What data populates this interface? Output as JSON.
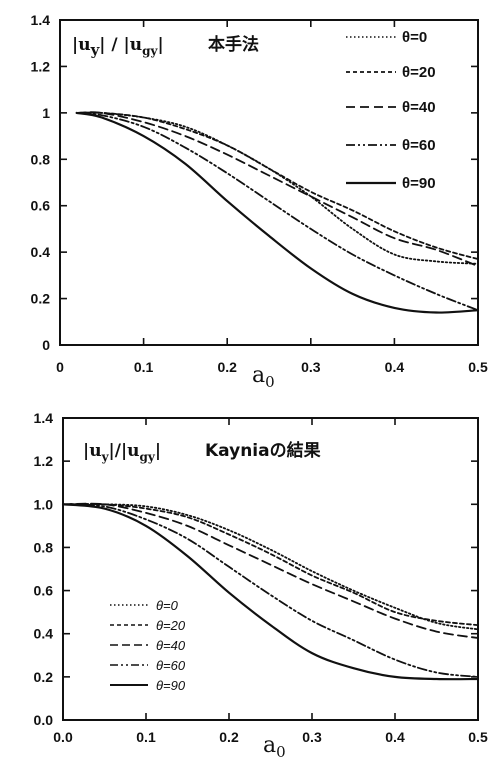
{
  "chart_data": [
    {
      "type": "line",
      "title": "本手法",
      "ylabel": "|uy| / |ugy|",
      "ylabel_parts": {
        "num": "u",
        "num_sub": "y",
        "den": "u",
        "den_sub": "gy"
      },
      "xlabel": "a0",
      "xlabel_parts": {
        "main": "a",
        "sub": "0"
      },
      "xlim": [
        0,
        0.5
      ],
      "ylim": [
        0,
        1.4
      ],
      "xticks": [
        "0",
        "0.1",
        "0.2",
        "0.3",
        "0.4",
        "0.5"
      ],
      "yticks": [
        "0",
        "0.2",
        "0.4",
        "0.6",
        "0.8",
        "1",
        "1.2",
        "1.4"
      ],
      "grid": false,
      "legend_position": "top-right",
      "series": [
        {
          "name": "θ=0",
          "style": "dotted",
          "x": [
            0.02,
            0.05,
            0.1,
            0.15,
            0.2,
            0.25,
            0.3,
            0.35,
            0.4,
            0.45,
            0.5
          ],
          "y": [
            1.0,
            1.0,
            0.98,
            0.94,
            0.86,
            0.76,
            0.64,
            0.5,
            0.39,
            0.36,
            0.35
          ]
        },
        {
          "name": "θ=20",
          "style": "short-dash",
          "x": [
            0.02,
            0.05,
            0.1,
            0.15,
            0.2,
            0.25,
            0.3,
            0.35,
            0.4,
            0.45,
            0.5
          ],
          "y": [
            1.0,
            1.0,
            0.98,
            0.93,
            0.86,
            0.76,
            0.66,
            0.58,
            0.49,
            0.42,
            0.37
          ]
        },
        {
          "name": "θ=40",
          "style": "dash",
          "x": [
            0.02,
            0.05,
            0.1,
            0.15,
            0.2,
            0.25,
            0.3,
            0.35,
            0.4,
            0.45,
            0.5
          ],
          "y": [
            1.0,
            1.0,
            0.96,
            0.9,
            0.82,
            0.73,
            0.64,
            0.55,
            0.46,
            0.41,
            0.34
          ]
        },
        {
          "name": "θ=60",
          "style": "dash-dot-dot",
          "x": [
            0.02,
            0.05,
            0.1,
            0.15,
            0.2,
            0.25,
            0.3,
            0.35,
            0.4,
            0.45,
            0.5
          ],
          "y": [
            1.0,
            0.99,
            0.94,
            0.85,
            0.74,
            0.62,
            0.5,
            0.39,
            0.3,
            0.22,
            0.15
          ]
        },
        {
          "name": "θ=90",
          "style": "solid",
          "x": [
            0.02,
            0.05,
            0.1,
            0.15,
            0.2,
            0.25,
            0.3,
            0.35,
            0.4,
            0.45,
            0.5
          ],
          "y": [
            1.0,
            0.98,
            0.9,
            0.78,
            0.62,
            0.47,
            0.33,
            0.22,
            0.16,
            0.14,
            0.15
          ]
        }
      ]
    },
    {
      "type": "line",
      "title": "Kayniaの結果",
      "ylabel": "|uy|/|ugy|",
      "ylabel_parts": {
        "num": "u",
        "num_sub": "y",
        "den": "u",
        "den_sub": "gy"
      },
      "xlabel": "a0",
      "xlabel_parts": {
        "main": "a",
        "sub": "0"
      },
      "xlim": [
        0,
        0.5
      ],
      "ylim": [
        0,
        1.4
      ],
      "xticks": [
        "0.0",
        "0.1",
        "0.2",
        "0.3",
        "0.4",
        "0.5"
      ],
      "yticks": [
        "0.0",
        "0.2",
        "0.4",
        "0.6",
        "0.8",
        "1.0",
        "1.2",
        "1.4"
      ],
      "grid": false,
      "legend_position": "bottom-left",
      "series": [
        {
          "name": "θ=0",
          "style": "dotted",
          "x": [
            0,
            0.05,
            0.1,
            0.15,
            0.2,
            0.25,
            0.3,
            0.35,
            0.4,
            0.45,
            0.5
          ],
          "y": [
            1.0,
            1.0,
            0.99,
            0.95,
            0.88,
            0.79,
            0.69,
            0.6,
            0.52,
            0.45,
            0.42
          ]
        },
        {
          "name": "θ=20",
          "style": "short-dash",
          "x": [
            0,
            0.05,
            0.1,
            0.15,
            0.2,
            0.25,
            0.3,
            0.35,
            0.4,
            0.45,
            0.5
          ],
          "y": [
            1.0,
            1.0,
            0.98,
            0.94,
            0.86,
            0.77,
            0.67,
            0.59,
            0.5,
            0.46,
            0.44
          ]
        },
        {
          "name": "θ=40",
          "style": "dash",
          "x": [
            0,
            0.05,
            0.1,
            0.15,
            0.2,
            0.25,
            0.3,
            0.35,
            0.4,
            0.45,
            0.5
          ],
          "y": [
            1.0,
            1.0,
            0.96,
            0.9,
            0.81,
            0.72,
            0.63,
            0.55,
            0.47,
            0.41,
            0.38
          ]
        },
        {
          "name": "θ=60",
          "style": "dash-dot-dot",
          "x": [
            0,
            0.05,
            0.1,
            0.15,
            0.2,
            0.25,
            0.3,
            0.35,
            0.4,
            0.45,
            0.5
          ],
          "y": [
            1.0,
            0.99,
            0.93,
            0.84,
            0.71,
            0.58,
            0.46,
            0.37,
            0.28,
            0.22,
            0.2
          ]
        },
        {
          "name": "θ=90",
          "style": "solid",
          "x": [
            0,
            0.05,
            0.1,
            0.15,
            0.2,
            0.25,
            0.3,
            0.35,
            0.4,
            0.45,
            0.5
          ],
          "y": [
            1.0,
            0.98,
            0.9,
            0.76,
            0.59,
            0.44,
            0.31,
            0.24,
            0.2,
            0.19,
            0.19
          ]
        }
      ]
    }
  ]
}
